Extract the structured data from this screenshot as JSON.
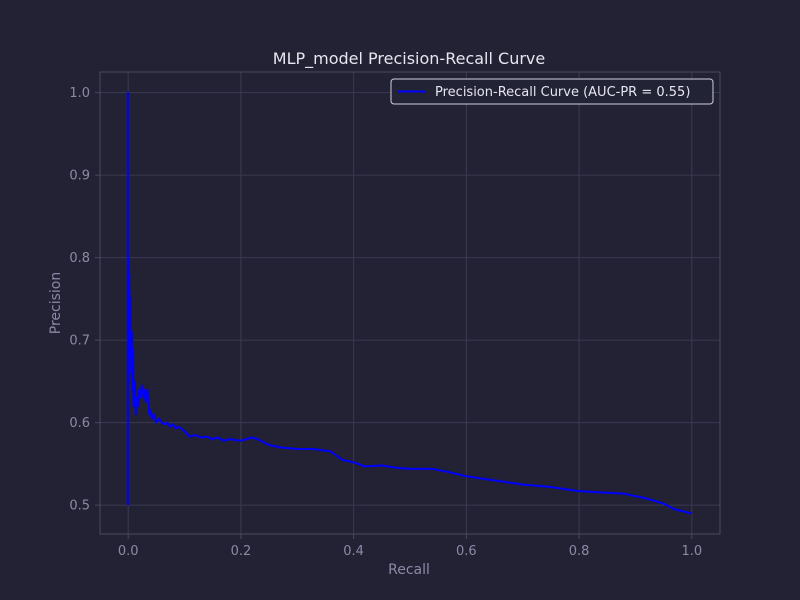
{
  "chart_data": {
    "type": "line",
    "title": "MLP_model Precision-Recall Curve",
    "xlabel": "Recall",
    "ylabel": "Precision",
    "xlim": [
      -0.05,
      1.05
    ],
    "ylim": [
      0.465,
      1.025
    ],
    "xticks": [
      0.0,
      0.2,
      0.4,
      0.6,
      0.8,
      1.0
    ],
    "xtick_labels": [
      "0.0",
      "0.2",
      "0.4",
      "0.6",
      "0.8",
      "1.0"
    ],
    "yticks": [
      0.5,
      0.6,
      0.7,
      0.8,
      0.9,
      1.0
    ],
    "ytick_labels": [
      "0.5",
      "0.6",
      "0.7",
      "0.8",
      "0.9",
      "1.0"
    ],
    "grid": true,
    "legend_position": "top-right",
    "colors": {
      "background": "#222234",
      "grid": "#3a3a52",
      "spine": "#4a4a62",
      "line": "#0000ff"
    },
    "series": [
      {
        "name": "Precision-Recall Curve (AUC-PR = 0.55)",
        "x": [
          0.0,
          0.0,
          0.0,
          0.001,
          0.001,
          0.002,
          0.002,
          0.003,
          0.003,
          0.004,
          0.004,
          0.005,
          0.006,
          0.007,
          0.008,
          0.009,
          0.01,
          0.012,
          0.014,
          0.016,
          0.018,
          0.02,
          0.022,
          0.025,
          0.028,
          0.03,
          0.032,
          0.035,
          0.038,
          0.04,
          0.043,
          0.046,
          0.05,
          0.055,
          0.06,
          0.065,
          0.07,
          0.075,
          0.08,
          0.085,
          0.09,
          0.1,
          0.11,
          0.12,
          0.13,
          0.14,
          0.15,
          0.16,
          0.17,
          0.18,
          0.2,
          0.22,
          0.23,
          0.25,
          0.27,
          0.3,
          0.33,
          0.36,
          0.38,
          0.4,
          0.42,
          0.45,
          0.48,
          0.5,
          0.54,
          0.57,
          0.6,
          0.63,
          0.65,
          0.68,
          0.7,
          0.75,
          0.8,
          0.85,
          0.88,
          0.92,
          0.95,
          0.97,
          1.0
        ],
        "y": [
          0.5,
          1.0,
          0.6,
          0.8,
          0.65,
          0.78,
          0.7,
          0.76,
          0.72,
          0.75,
          0.68,
          0.7,
          0.66,
          0.71,
          0.64,
          0.69,
          0.62,
          0.65,
          0.61,
          0.63,
          0.62,
          0.64,
          0.63,
          0.645,
          0.63,
          0.64,
          0.625,
          0.64,
          0.61,
          0.615,
          0.605,
          0.61,
          0.6,
          0.605,
          0.6,
          0.598,
          0.6,
          0.595,
          0.598,
          0.593,
          0.595,
          0.59,
          0.583,
          0.585,
          0.582,
          0.583,
          0.58,
          0.582,
          0.578,
          0.58,
          0.578,
          0.582,
          0.58,
          0.573,
          0.57,
          0.568,
          0.568,
          0.565,
          0.555,
          0.552,
          0.547,
          0.548,
          0.545,
          0.544,
          0.544,
          0.54,
          0.535,
          0.532,
          0.53,
          0.527,
          0.525,
          0.522,
          0.517,
          0.515,
          0.514,
          0.508,
          0.502,
          0.495,
          0.49
        ]
      }
    ]
  }
}
